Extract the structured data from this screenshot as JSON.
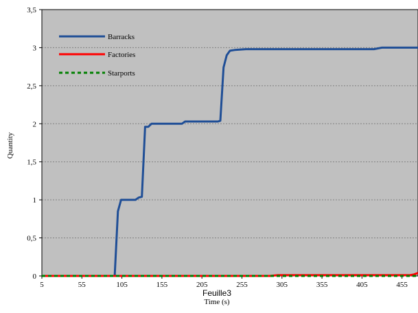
{
  "sheet_label": "Feuille3",
  "colors": {
    "plot_background": "#c0c0c0",
    "gridline": "#808080",
    "axis": "#000000",
    "barracks": "#1f4e96",
    "factories": "#ff0000",
    "starports": "#008000"
  },
  "chart_data": {
    "type": "line",
    "xlabel": "Time (s)",
    "ylabel": "Quantity",
    "xlim": [
      5,
      475
    ],
    "ylim": [
      0,
      3.5
    ],
    "x_ticks": [
      5,
      55,
      105,
      155,
      205,
      255,
      305,
      355,
      405,
      455
    ],
    "x_tick_labels": [
      "5",
      "55",
      "105",
      "155",
      "205",
      "255",
      "305",
      "355",
      "405",
      "455"
    ],
    "y_ticks": [
      0,
      0.5,
      1,
      1.5,
      2,
      2.5,
      3,
      3.5
    ],
    "y_tick_labels": [
      "0",
      "0,5",
      "1",
      "1,5",
      "2",
      "2,5",
      "3",
      "3,5"
    ],
    "grid": "horizontal dashed",
    "legend_position": "top-left",
    "series": [
      {
        "name": "Barracks",
        "style": "solid",
        "color": "#1f4e96",
        "x": [
          5,
          96,
          100,
          104,
          122,
          126,
          130,
          134,
          138,
          142,
          180,
          184,
          225,
          228,
          232,
          236,
          240,
          246,
          260,
          280,
          420,
          430,
          475
        ],
        "y": [
          0,
          0,
          0.85,
          1.0,
          1.0,
          1.03,
          1.04,
          1.96,
          1.96,
          2.0,
          2.0,
          2.03,
          2.03,
          2.04,
          2.74,
          2.9,
          2.96,
          2.97,
          2.98,
          2.98,
          2.98,
          3.0,
          3.0
        ]
      },
      {
        "name": "Factories",
        "style": "solid",
        "color": "#ff0000",
        "x": [
          5,
          290,
          300,
          465,
          470,
          475
        ],
        "y": [
          0,
          0,
          0.01,
          0.01,
          0.02,
          0.04
        ]
      },
      {
        "name": "Starports",
        "style": "dashed",
        "color": "#008000",
        "x": [
          5,
          475
        ],
        "y": [
          0,
          0
        ]
      }
    ]
  }
}
